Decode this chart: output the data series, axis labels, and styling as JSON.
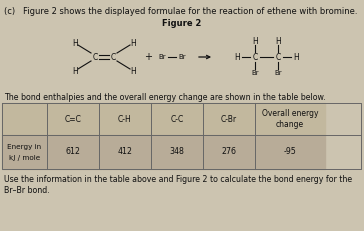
{
  "title_line": "(c)   Figure 2 shows the displayed formulae for the reaction of ethene with bromine.",
  "figure_label": "Figure 2",
  "table_intro": "The bond enthalpies and the overall energy change are shown in the table below.",
  "footer_line1": "Use the information in the table above and Figure 2 to calculate the bond energy for the",
  "footer_line2": "Br–Br bond.",
  "table_headers": [
    "C=C",
    "C-H",
    "C-C",
    "C-Br",
    "Overall energy\nchange"
  ],
  "row_label_1": "Energy in",
  "row_label_2": "kJ / mole",
  "row_values": [
    "612",
    "412",
    "348",
    "276",
    "-95"
  ],
  "bg_color": "#ccc4b0",
  "text_color": "#111111",
  "table_header_bg": "#c2b89e",
  "table_data_bg": "#b8ac98",
  "border_color": "#666666"
}
